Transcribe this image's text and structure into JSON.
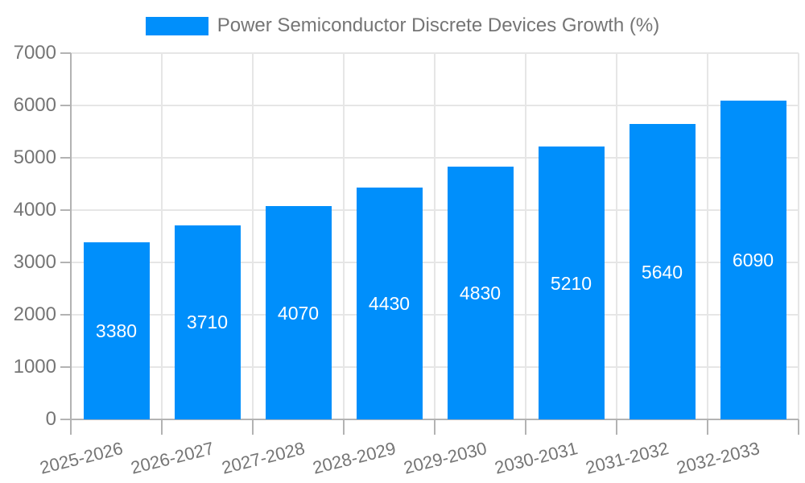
{
  "chart_data": {
    "type": "bar",
    "title": "Power Semiconductor Discrete Devices Growth (%)",
    "categories": [
      "2025-2026",
      "2026-2027",
      "2027-2028",
      "2028-2029",
      "2029-2030",
      "2030-2031",
      "2031-2032",
      "2032-2033"
    ],
    "values": [
      3380,
      3710,
      4070,
      4430,
      4830,
      5210,
      5640,
      6090
    ],
    "bar_labels": [
      "3380",
      "3710",
      "4070",
      "4430",
      "4830",
      "5210",
      "5640",
      "6090"
    ],
    "xlabel": "",
    "ylabel": "",
    "ylim": [
      0,
      7000
    ],
    "ytick_step": 1000,
    "y_tick_labels": [
      "0",
      "1000",
      "2000",
      "3000",
      "4000",
      "5000",
      "6000",
      "7000"
    ],
    "grid": true,
    "legend_position": "top",
    "colors": {
      "bar": "#008ffb",
      "grid": "#e6e6e6",
      "axis": "#b3b3b3",
      "tick_label": "#757575",
      "bar_label": "#ffffff",
      "legend_text": "#757575",
      "background": "#ffffff"
    }
  }
}
